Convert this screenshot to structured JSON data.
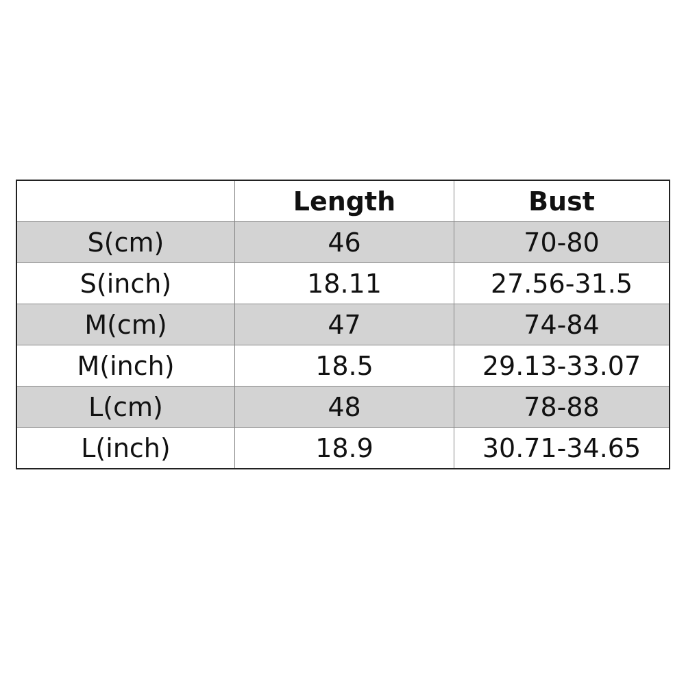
{
  "table": {
    "headers": [
      "",
      "Length",
      "Bust"
    ],
    "rows": [
      [
        "S(cm)",
        "46",
        "70-80"
      ],
      [
        "S(inch)",
        "18.11",
        "27.56-31.5"
      ],
      [
        "M(cm)",
        "47",
        "74-84"
      ],
      [
        "M(inch)",
        "18.5",
        "29.13-33.07"
      ],
      [
        "L(cm)",
        "48",
        "78-88"
      ],
      [
        "L(inch)",
        "18.9",
        "30.71-34.65"
      ]
    ],
    "shaded_row_color": "#d3d3d3"
  }
}
